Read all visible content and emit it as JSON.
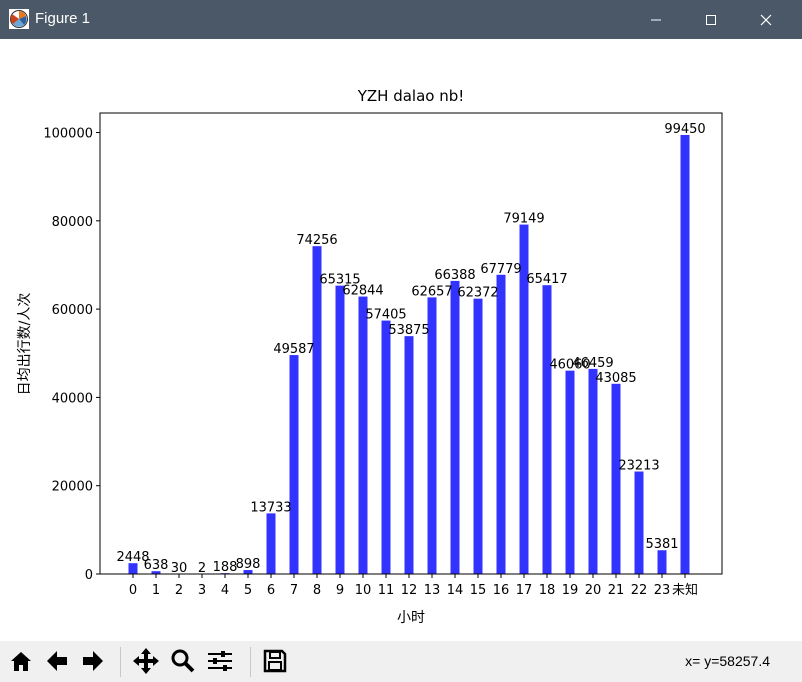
{
  "window": {
    "title": "Figure 1"
  },
  "toolbar": {
    "buttons": [
      "home-icon",
      "back-arrow-icon",
      "forward-arrow-icon",
      "pan-icon",
      "zoom-icon",
      "subplots-icon",
      "save-icon"
    ],
    "coords_text": "x= y=58257.4"
  },
  "chart_data": {
    "type": "bar",
    "title": "YZH dalao nb!",
    "xlabel": "小时",
    "ylabel": "日均出行数/人次",
    "categories": [
      "0",
      "1",
      "2",
      "3",
      "4",
      "5",
      "6",
      "7",
      "8",
      "9",
      "10",
      "11",
      "12",
      "13",
      "14",
      "15",
      "16",
      "17",
      "18",
      "19",
      "20",
      "21",
      "22",
      "23",
      "未知"
    ],
    "values": [
      2448,
      638,
      30,
      2,
      188,
      898,
      13733,
      49587,
      74256,
      65315,
      62844,
      57405,
      53875,
      62657,
      66388,
      62372,
      67779,
      79149,
      65417,
      46060,
      46459,
      43085,
      23213,
      5381,
      99450
    ],
    "data_labels": [
      "2448",
      "638",
      "30",
      "2",
      "188",
      "898",
      "13733",
      "49587",
      "74256",
      "65315",
      "62844",
      "57405",
      "53875",
      "62657",
      "66388",
      "62372",
      "67779",
      "79149",
      "65417",
      "46060",
      "46459",
      "43085",
      "23213",
      "5381",
      "99450"
    ],
    "yticks": [
      0,
      20000,
      40000,
      60000,
      80000,
      100000
    ],
    "ylim": [
      0,
      104422
    ],
    "bar_color": "#3333ff",
    "grid": false
  }
}
